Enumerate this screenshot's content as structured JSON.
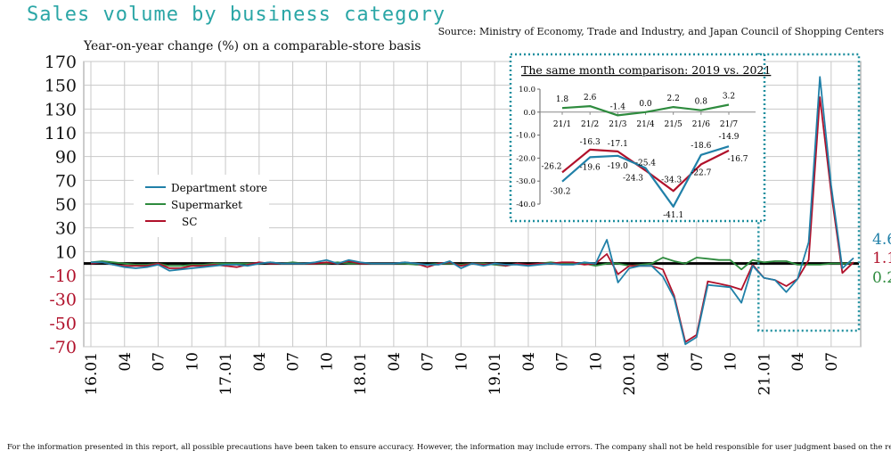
{
  "title": "Sales volume by business category",
  "source": "Source: Ministry of Economy, Trade and Industry, and Japan Council of Shopping Centers",
  "footer": "For the information presented in this report, all possible precautions have been taken to ensure accuracy. However, the information may include errors. The company shall not be held responsible for user judgment based on the report.",
  "colors": {
    "dept": "#2080a8",
    "super": "#2e8b3e",
    "sc": "#b0102a",
    "title": "#2aa6a6",
    "box": "#1f8f9f"
  },
  "chart_data": [
    {
      "type": "line",
      "ylabel": "Year-on-year change (%) on a comparable-store basis",
      "ylim": [
        -70,
        170
      ],
      "yticks": [
        170,
        150,
        130,
        110,
        90,
        70,
        50,
        30,
        10,
        -10,
        -30,
        -50,
        -70
      ],
      "xticks": [
        {
          "i": 0,
          "label": "16.01"
        },
        {
          "i": 3,
          "label": "04"
        },
        {
          "i": 6,
          "label": "07"
        },
        {
          "i": 9,
          "label": "10"
        },
        {
          "i": 12,
          "label": "17.01"
        },
        {
          "i": 15,
          "label": "04"
        },
        {
          "i": 18,
          "label": "07"
        },
        {
          "i": 21,
          "label": "10"
        },
        {
          "i": 24,
          "label": "18.01"
        },
        {
          "i": 27,
          "label": "04"
        },
        {
          "i": 30,
          "label": "07"
        },
        {
          "i": 33,
          "label": "10"
        },
        {
          "i": 36,
          "label": "19.01"
        },
        {
          "i": 39,
          "label": "04"
        },
        {
          "i": 42,
          "label": "07"
        },
        {
          "i": 45,
          "label": "10"
        },
        {
          "i": 48,
          "label": "20.01"
        },
        {
          "i": 51,
          "label": "04"
        },
        {
          "i": 54,
          "label": "07"
        },
        {
          "i": 57,
          "label": "10"
        },
        {
          "i": 60,
          "label": "21.01"
        },
        {
          "i": 63,
          "label": "04"
        },
        {
          "i": 66,
          "label": "07"
        }
      ],
      "grid": true,
      "legend": "left",
      "series": [
        {
          "name": "Department store",
          "color_key": "dept",
          "values": [
            1,
            1,
            -1,
            -3,
            -4,
            -3,
            -1,
            -6,
            -5,
            -4,
            -3,
            -2,
            -1,
            -1,
            -2,
            0,
            1,
            0,
            0,
            0,
            1,
            3,
            0,
            3,
            1,
            0,
            0,
            0,
            1,
            0,
            -1,
            -1,
            2,
            -4,
            0,
            -2,
            0,
            -1,
            -1,
            -2,
            -1,
            0,
            -1,
            -1,
            1,
            0,
            20,
            -16,
            -4,
            -2,
            -2,
            -11,
            -29,
            -68,
            -62,
            -18,
            -19,
            -20,
            -33,
            -2,
            -12,
            -14,
            -24,
            -13,
            18,
            157,
            66,
            -4,
            4.6
          ],
          "end_label": "4.6"
        },
        {
          "name": "Supermarket",
          "color_key": "super",
          "values": [
            1,
            2,
            1,
            0,
            -1,
            -1,
            0,
            -2,
            -2,
            -1,
            -1,
            0,
            0,
            0,
            0,
            0,
            1,
            0,
            1,
            0,
            0,
            0,
            1,
            0,
            0,
            0,
            0,
            0,
            0,
            -1,
            -1,
            0,
            0,
            -1,
            0,
            0,
            -1,
            -2,
            0,
            -2,
            0,
            1,
            0,
            0,
            0,
            -2,
            0,
            0,
            -2,
            -1,
            0,
            5,
            2,
            0,
            5,
            4,
            3,
            3,
            -5,
            3,
            1,
            2,
            2,
            -1,
            -1,
            -1,
            0,
            0,
            0.2
          ],
          "end_label": "0.2"
        },
        {
          "name": "SC",
          "color_key": "sc",
          "values": [
            0,
            1,
            -1,
            -2,
            -2,
            -2,
            0,
            -4,
            -4,
            -2,
            -2,
            -1,
            -2,
            -3,
            -1,
            1,
            0,
            0,
            0,
            0,
            0,
            1,
            0,
            2,
            0,
            0,
            0,
            0,
            1,
            0,
            -3,
            0,
            1,
            -2,
            0,
            -1,
            0,
            -2,
            0,
            -1,
            0,
            0,
            1,
            1,
            -1,
            0,
            8,
            -9,
            -2,
            -2,
            -2,
            -5,
            -27,
            -66,
            -60,
            -15,
            -17,
            -19,
            -22,
            -1,
            -12,
            -14,
            -19,
            -13,
            3,
            140,
            60,
            -8,
            1.1
          ],
          "end_label": "1.1"
        }
      ],
      "highlight_range": [
        60,
        68
      ]
    },
    {
      "type": "line",
      "title": "The same month comparison: 2019 vs. 2021",
      "categories": [
        "21/1",
        "21/2",
        "21/3",
        "21/4",
        "21/5",
        "21/6",
        "21/7"
      ],
      "yticks": [
        10.0,
        0.0,
        -10.0,
        -20.0,
        -30.0,
        -40.0
      ],
      "yticklabels": [
        "10.0",
        "0.0",
        "-10.0",
        "-20.0",
        "-30.0",
        "-40.0"
      ],
      "ylim": [
        -45,
        10
      ],
      "series": [
        {
          "name": "Supermarket",
          "color_key": "super",
          "values": [
            1.8,
            2.6,
            -1.4,
            0.0,
            2.2,
            0.8,
            3.2
          ],
          "labels": [
            "1.8",
            "2.6",
            "-1.4",
            "0.0",
            "2.2",
            "0.8",
            "3.2"
          ]
        },
        {
          "name": "SC",
          "color_key": "sc",
          "values": [
            -26.2,
            -16.3,
            -17.1,
            -25.4,
            -34.3,
            -22.7,
            -16.7
          ],
          "labels": [
            "-26.2",
            "-16.3",
            "-17.1",
            "-25.4",
            "-34.3",
            "-22.7",
            "-16.7"
          ]
        },
        {
          "name": "Department store",
          "color_key": "dept",
          "values": [
            -30.2,
            -19.6,
            -19.0,
            -24.3,
            -41.1,
            -18.6,
            -14.9
          ],
          "labels": [
            "-30.2",
            "-19.6",
            "-19.0",
            "-24.3",
            "-41.1",
            "-18.6",
            "-14.9"
          ]
        }
      ]
    }
  ]
}
